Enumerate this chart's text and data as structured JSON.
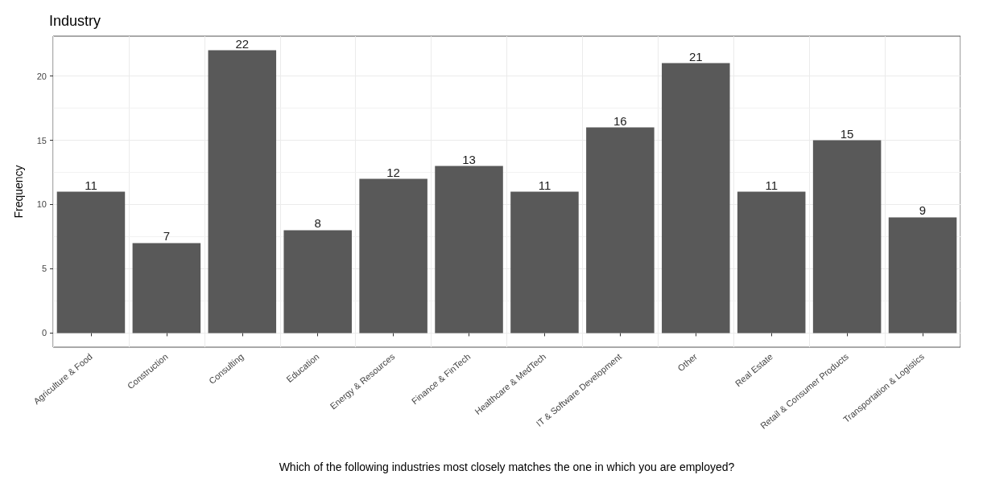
{
  "chart_data": {
    "type": "bar",
    "title": "Industry",
    "xlabel": "Which of the following industries most closely matches the one in which you are employed?",
    "ylabel": "Frequency",
    "categories": [
      "Agriculture & Food",
      "Construction",
      "Consulting",
      "Education",
      "Energy & Resources",
      "Finance & FinTech",
      "Healthcare & MedTech",
      "IT & Software Development",
      "Other",
      "Real Estate",
      "Retail & Consumer Products",
      "Transportation & Logistics"
    ],
    "values": [
      11,
      7,
      22,
      8,
      12,
      13,
      11,
      16,
      21,
      11,
      15,
      9
    ],
    "color": "#595959",
    "ylim": [
      -1.1,
      23.1
    ],
    "yticks": [
      0,
      5,
      10,
      15,
      20
    ],
    "grid": true,
    "data_labels": true
  }
}
